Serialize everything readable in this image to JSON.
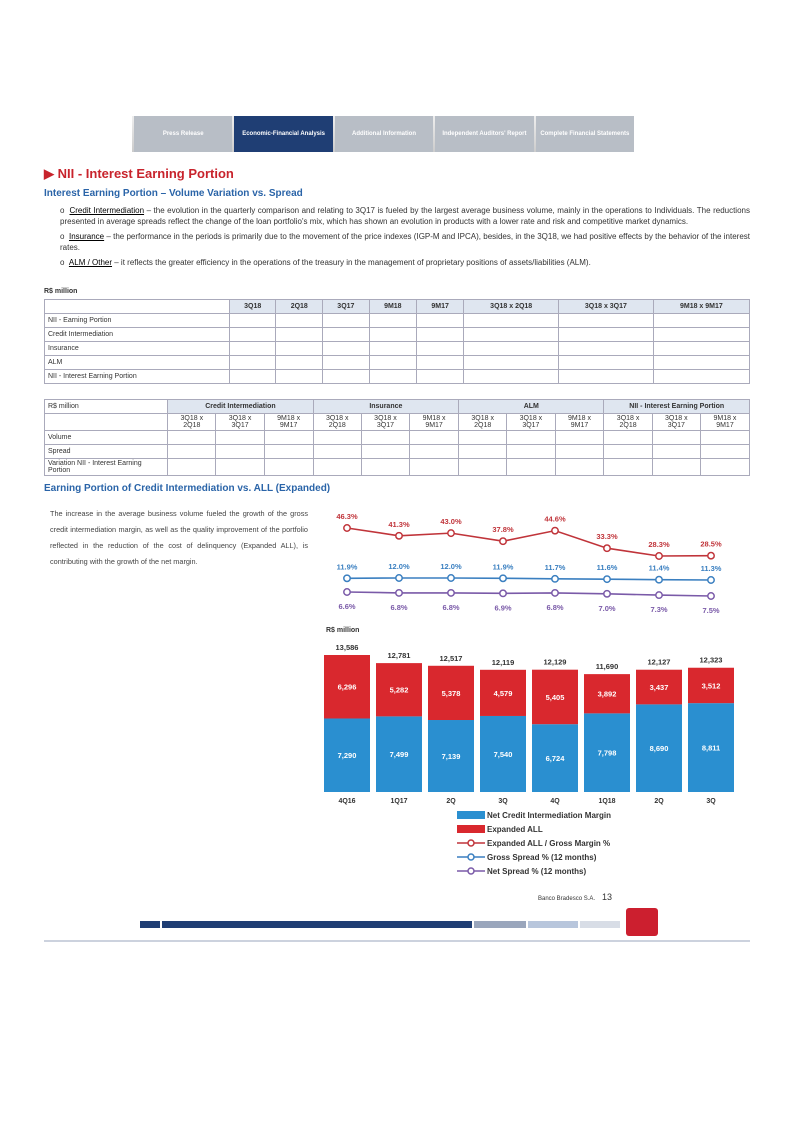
{
  "nav": {
    "tabs": [
      "Press Release",
      "Economic-Financial Analysis",
      "Additional Information",
      "Independent Auditors' Report",
      "Complete Financial Statements"
    ]
  },
  "title": "NII - Interest Earning Portion",
  "subtitle": "Interest Earning Portion – Volume Variation vs. Spread",
  "bullets": [
    {
      "term": "Credit Intermediation",
      "text": " – the evolution in the quarterly comparison and relating to 3Q17 is fueled by the largest average business volume, mainly in the operations to Individuals. The reductions presented in average spreads reflect the change of the loan portfolio's mix, which has shown an evolution in products with a lower rate and risk and competitive market dynamics."
    },
    {
      "term": "Insurance",
      "text": " – the performance in the periods is primarily due to the movement of the price indexes (IGP-M and IPCA), besides, in the 3Q18, we had positive effects by the behavior of the interest rates."
    },
    {
      "term": "ALM / Other",
      "text": " – it reflects the greater efficiency in the operations of the treasury in the management of proprietary positions of assets/liabilities (ALM)."
    }
  ],
  "table1": {
    "unit": "R$ million",
    "columns": [
      "3Q18",
      "2Q18",
      "3Q17",
      "9M18",
      "9M17",
      "3Q18 x 2Q18",
      "3Q18 x 3Q17",
      "9M18 x 9M17"
    ],
    "rows": [
      "NII - Earning Portion",
      "Credit Intermediation",
      "Insurance",
      "ALM",
      "NII - Interest Earning Portion"
    ]
  },
  "table2": {
    "unit": "R$ million",
    "groups": [
      "Credit Intermediation",
      "Insurance",
      "ALM",
      "NII - Interest Earning Portion"
    ],
    "subcolumns": [
      "3Q18 x 2Q18",
      "3Q18 x 3Q17",
      "9M18 x 9M17"
    ],
    "rows": [
      "Volume",
      "Spread",
      "Variation NII - Interest Earning Portion"
    ]
  },
  "chart_section": {
    "title": "Earning Portion of Credit Intermediation vs. ALL (Expanded)",
    "text": "The increase in the average business volume fueled the growth of the gross credit intermediation margin, as well as the quality improvement of the portfolio reflected in the reduction of the cost of delinquency (Expanded ALL), is contributing with the growth of the net margin."
  },
  "chart_data": {
    "type": "bar",
    "unit_label": "R$ million",
    "categories": [
      "4Q16",
      "1Q17",
      "2Q",
      "3Q",
      "4Q",
      "1Q18",
      "2Q",
      "3Q"
    ],
    "totals": [
      13586,
      12781,
      12517,
      12119,
      12129,
      11690,
      12127,
      12323
    ],
    "totals_labels": [
      "13,586",
      "12,781",
      "12,517",
      "12,119",
      "12,129",
      "11,690",
      "12,127",
      "12,323"
    ],
    "series": [
      {
        "name": "Net Credit Intermediation Margin",
        "type": "bar",
        "color": "#2a8fd0",
        "values": [
          7290,
          7499,
          7139,
          7540,
          6724,
          7798,
          8690,
          8811
        ],
        "value_labels": [
          "7,290",
          "7,499",
          "7,139",
          "7,540",
          "6,724",
          "7,798",
          "8,690",
          "8,811"
        ]
      },
      {
        "name": "Expanded ALL",
        "type": "bar",
        "color": "#d9282e",
        "values": [
          6296,
          5282,
          5378,
          4579,
          5405,
          3892,
          3437,
          3512
        ],
        "value_labels": [
          "6,296",
          "5,282",
          "5,378",
          "4,579",
          "5,405",
          "3,892",
          "3,437",
          "3,512"
        ]
      },
      {
        "name": "Expanded ALL / Gross Margin %",
        "type": "line",
        "color": "#c0343a",
        "values": [
          46.3,
          41.3,
          43.0,
          37.8,
          44.6,
          33.3,
          28.3,
          28.5
        ],
        "value_labels": [
          "46.3%",
          "41.3%",
          "43.0%",
          "37.8%",
          "44.6%",
          "33.3%",
          "28.3%",
          "28.5%"
        ]
      },
      {
        "name": "Gross Spread % (12 months)",
        "type": "line",
        "color": "#3a7fc0",
        "values": [
          11.9,
          12.0,
          12.0,
          11.9,
          11.7,
          11.6,
          11.4,
          11.3
        ],
        "value_labels": [
          "11.9%",
          "12.0%",
          "12.0%",
          "11.9%",
          "11.7%",
          "11.6%",
          "11.4%",
          "11.3%"
        ]
      },
      {
        "name": "Net  Spread % (12 months)",
        "type": "line",
        "color": "#7a5aa8",
        "values": [
          6.6,
          6.8,
          6.8,
          6.9,
          6.8,
          7.0,
          7.3,
          7.5
        ],
        "value_labels": [
          "6.6%",
          "6.8%",
          "6.8%",
          "6.9%",
          "6.8%",
          "7.0%",
          "7.3%",
          "7.5%"
        ]
      }
    ]
  },
  "footer": {
    "company": "Banco Bradesco S.A.",
    "page": "13"
  }
}
